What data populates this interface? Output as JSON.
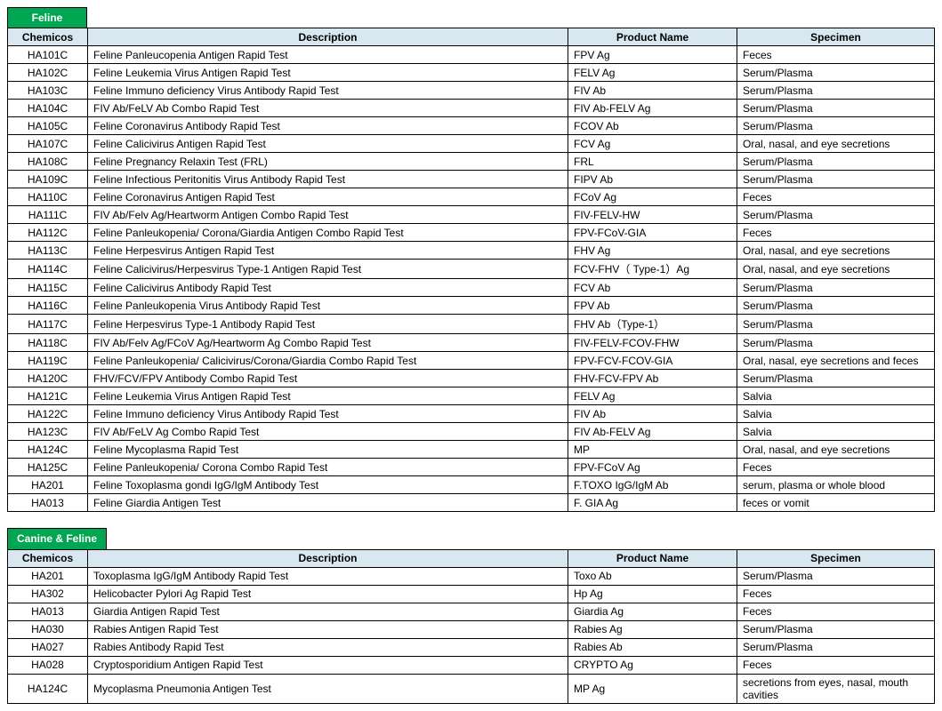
{
  "section1": {
    "title": "Feline",
    "columns": [
      "Chemicos",
      "Description",
      "Product Name",
      "Specimen"
    ],
    "rows": [
      [
        "HA101C",
        "Feline Panleucopenia Antigen Rapid Test",
        "FPV Ag",
        "Feces"
      ],
      [
        "HA102C",
        "Feline Leukemia Virus Antigen Rapid Test",
        "FELV Ag",
        "Serum/Plasma"
      ],
      [
        "HA103C",
        "Feline Immuno deficiency Virus Antibody Rapid Test",
        "FIV Ab",
        "Serum/Plasma"
      ],
      [
        "HA104C",
        "FIV Ab/FeLV Ab Combo Rapid Test",
        "FIV Ab-FELV Ag",
        "Serum/Plasma"
      ],
      [
        "HA105C",
        "Feline Coronavirus Antibody Rapid Test",
        "FCOV Ab",
        "Serum/Plasma"
      ],
      [
        "HA107C",
        "Feline Calicivirus Antigen Rapid Test",
        "FCV Ag",
        "Oral, nasal, and eye secretions"
      ],
      [
        "HA108C",
        "Feline Pregnancy Relaxin Test (FRL)",
        "FRL",
        "Serum/Plasma"
      ],
      [
        "HA109C",
        "Feline Infectious Peritonitis Virus Antibody Rapid Test",
        "FIPV Ab",
        "Serum/Plasma"
      ],
      [
        "HA110C",
        "Feline Coronavirus Antigen Rapid Test",
        "FCoV Ag",
        "Feces"
      ],
      [
        "HA111C",
        "FIV Ab/Felv Ag/Heartworm Antigen Combo Rapid Test",
        "FIV-FELV-HW",
        "Serum/Plasma"
      ],
      [
        "HA112C",
        "Feline Panleukopenia/ Corona/Giardia Antigen Combo Rapid Test",
        "FPV-FCoV-GIA",
        "Feces"
      ],
      [
        "HA113C",
        "Feline Herpesvirus Antigen Rapid Test",
        "FHV Ag",
        "Oral, nasal, and eye secretions"
      ],
      [
        "HA114C",
        "Feline Calicivirus/Herpesvirus Type-1 Antigen Rapid Test",
        "FCV-FHV（ Type-1）Ag",
        "Oral, nasal, and eye secretions"
      ],
      [
        "HA115C",
        "Feline Calicivirus Antibody Rapid Test",
        "FCV Ab",
        "Serum/Plasma"
      ],
      [
        "HA116C",
        "Feline Panleukopenia Virus Antibody Rapid Test",
        "FPV Ab",
        "Serum/Plasma"
      ],
      [
        "HA117C",
        "Feline Herpesvirus Type-1 Antibody Rapid Test",
        "FHV Ab（Type-1）",
        "Serum/Plasma"
      ],
      [
        "HA118C",
        "FIV Ab/Felv Ag/FCoV Ag/Heartworm Ag Combo Rapid Test",
        "FIV-FELV-FCOV-FHW",
        "Serum/Plasma"
      ],
      [
        "HA119C",
        "Feline Panleukopenia/ Calicivirus/Corona/Giardia Combo Rapid Test",
        "FPV-FCV-FCOV-GIA",
        "Oral, nasal, eye secretions and feces"
      ],
      [
        "HA120C",
        "FHV/FCV/FPV Antibody Combo Rapid Test",
        "FHV-FCV-FPV Ab",
        "Serum/Plasma"
      ],
      [
        "HA121C",
        "Feline Leukemia Virus Antigen Rapid Test",
        "FELV Ag",
        "Salvia"
      ],
      [
        "HA122C",
        "Feline Immuno deficiency Virus Antibody Rapid Test",
        "FIV Ab",
        "Salvia"
      ],
      [
        "HA123C",
        "FIV Ab/FeLV Ag Combo Rapid Test",
        "FIV Ab-FELV Ag",
        "Salvia"
      ],
      [
        "HA124C",
        "Feline Mycoplasma Rapid Test",
        "MP",
        "Oral, nasal, and eye secretions"
      ],
      [
        "HA125C",
        "Feline Panleukopenia/ Corona Combo Rapid Test",
        "FPV-FCoV Ag",
        "Feces"
      ],
      [
        "HA201",
        "Feline Toxoplasma gondi IgG/IgM Antibody Test",
        "F.TOXO IgG/IgM Ab",
        "serum, plasma or whole blood"
      ],
      [
        "HA013",
        "Feline Giardia Antigen Test",
        "F. GIA Ag",
        "feces or vomit"
      ]
    ]
  },
  "section2": {
    "title": "Canine & Feline",
    "columns": [
      "Chemicos",
      "Description",
      "Product Name",
      "Specimen"
    ],
    "rows": [
      [
        "HA201",
        "Toxoplasma IgG/IgM Antibody Rapid Test",
        "Toxo Ab",
        "Serum/Plasma"
      ],
      [
        "HA302",
        "Helicobacter Pylori Ag Rapid Test",
        "Hp Ag",
        "Feces"
      ],
      [
        "HA013",
        "Giardia Antigen Rapid Test",
        "Giardia Ag",
        "Feces"
      ],
      [
        "HA030",
        "Rabies Antigen Rapid Test",
        "Rabies Ag",
        "Serum/Plasma"
      ],
      [
        "HA027",
        "Rabies Antibody Rapid Test",
        "Rabies Ab",
        "Serum/Plasma"
      ],
      [
        "HA028",
        "Cryptosporidium Antigen Rapid Test",
        "CRYPTO Ag",
        "Feces"
      ],
      [
        "HA124C",
        "Mycoplasma Pneumonia Antigen Test",
        "MP Ag",
        "secretions from eyes, nasal, mouth cavities"
      ]
    ]
  },
  "colors": {
    "header_bg": "#d9e8f0",
    "title_bg": "#00a651",
    "title_fg": "#ffffff",
    "border": "#000000"
  }
}
